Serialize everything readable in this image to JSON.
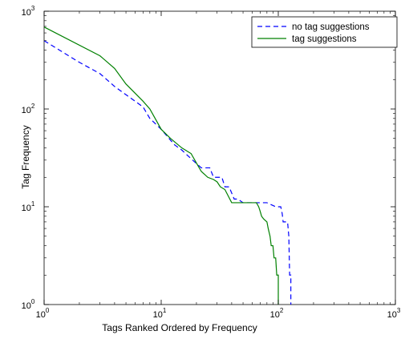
{
  "chart_data": {
    "type": "line",
    "title": "",
    "xlabel": "Tags Ranked Ordered by Frequency",
    "ylabel": "Tag Frequency",
    "xscale": "log",
    "yscale": "log",
    "xlim": [
      1,
      1000
    ],
    "ylim": [
      1,
      1000
    ],
    "grid": false,
    "legend_position": "top-right",
    "x_ticks": [
      {
        "base": "10",
        "exp": "0"
      },
      {
        "base": "10",
        "exp": "1"
      },
      {
        "base": "10",
        "exp": "2"
      },
      {
        "base": "10",
        "exp": "3"
      }
    ],
    "y_ticks": [
      {
        "base": "10",
        "exp": "0"
      },
      {
        "base": "10",
        "exp": "1"
      },
      {
        "base": "10",
        "exp": "2"
      },
      {
        "base": "10",
        "exp": "3"
      }
    ],
    "series": [
      {
        "name": "no tag suggestions",
        "color": "#0000ff",
        "style": "dashed",
        "points": [
          [
            1,
            500
          ],
          [
            2,
            300
          ],
          [
            3,
            230
          ],
          [
            4,
            170
          ],
          [
            5,
            140
          ],
          [
            7,
            105
          ],
          [
            8,
            80
          ],
          [
            10,
            62
          ],
          [
            13,
            43
          ],
          [
            15,
            38
          ],
          [
            18,
            31
          ],
          [
            22,
            25
          ],
          [
            26,
            25
          ],
          [
            28,
            20
          ],
          [
            33,
            20
          ],
          [
            35,
            16
          ],
          [
            38,
            16
          ],
          [
            42,
            12
          ],
          [
            45,
            12
          ],
          [
            50,
            11
          ],
          [
            55,
            11
          ],
          [
            75,
            11
          ],
          [
            78,
            11
          ],
          [
            80,
            11
          ],
          [
            95,
            10
          ],
          [
            105,
            10
          ],
          [
            108,
            8.5
          ],
          [
            110,
            7
          ],
          [
            120,
            7
          ],
          [
            123,
            5
          ],
          [
            125,
            2
          ],
          [
            128,
            2
          ],
          [
            128,
            1
          ]
        ]
      },
      {
        "name": "tag suggestions",
        "color": "#008000",
        "style": "solid",
        "points": [
          [
            1,
            690
          ],
          [
            3,
            350
          ],
          [
            4,
            260
          ],
          [
            5,
            180
          ],
          [
            7,
            120
          ],
          [
            8,
            100
          ],
          [
            10,
            62
          ],
          [
            12,
            50
          ],
          [
            15,
            40
          ],
          [
            18,
            35
          ],
          [
            20,
            28
          ],
          [
            22,
            23
          ],
          [
            25,
            20
          ],
          [
            28,
            19
          ],
          [
            30,
            18
          ],
          [
            32,
            16
          ],
          [
            35,
            15
          ],
          [
            40,
            11
          ],
          [
            45,
            11
          ],
          [
            55,
            11
          ],
          [
            65,
            11
          ],
          [
            68,
            10
          ],
          [
            70,
            9
          ],
          [
            72,
            8
          ],
          [
            75,
            7.5
          ],
          [
            80,
            7
          ],
          [
            82,
            6
          ],
          [
            85,
            5
          ],
          [
            87,
            4
          ],
          [
            90,
            4
          ],
          [
            92,
            3
          ],
          [
            95,
            3
          ],
          [
            97,
            2
          ],
          [
            100,
            2
          ],
          [
            100,
            1
          ]
        ]
      }
    ]
  }
}
